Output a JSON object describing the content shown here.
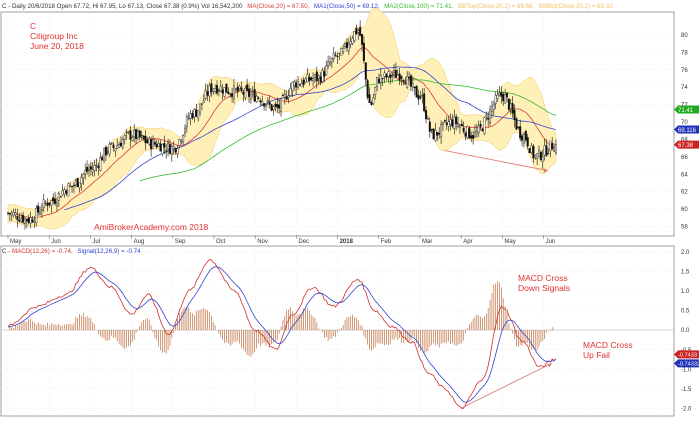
{
  "price_panel": {
    "header": {
      "ticker_prefix": "C - Daily 20/6/2018 Open 67.72, Hi 67.95, Lo 67.13, Close 67.38 (0.9%) Vol 16,542,200",
      "ma_items": [
        {
          "text": "MA(Close,20) = 67.50,",
          "color": "#d93a3a"
        },
        {
          "text": "MA1(Close,50) = 69.12,",
          "color": "#3344cc"
        },
        {
          "text": "MA2(Close,100) = 71.41,",
          "color": "#33bb33"
        },
        {
          "text": "BBTop(Close,20,2) = 69.68,",
          "color": "#f0c060"
        },
        {
          "text": "BBBot(Close,20,2) = 65.32",
          "color": "#f0c060"
        }
      ]
    },
    "annotations": {
      "symbol": "C",
      "name": "Citigroup Inc",
      "date": "June 20, 2018",
      "watermark": "AmiBrokerAcademy.com  2018"
    },
    "y_ticks": [
      "80",
      "78",
      "76",
      "74",
      "72",
      "70",
      "68",
      "66",
      "64",
      "62",
      "60",
      "58"
    ],
    "x_ticks": [
      "May",
      "Jun",
      "Jul",
      "Aug",
      "Sep",
      "Oct",
      "Nov",
      "Dec",
      "2018",
      "Feb",
      "Mar",
      "Apr",
      "May",
      "Jun"
    ],
    "badges": [
      {
        "text": "71.41",
        "color": "#22aa22"
      },
      {
        "text": "69.116",
        "color": "#2233bb"
      },
      {
        "text": "67.38",
        "color": "#cc2222"
      }
    ]
  },
  "macd_panel": {
    "header": {
      "prefix": "C - ",
      "items": [
        {
          "text": "MACD(12,26) = -0.74,",
          "color": "#cc3333"
        },
        {
          "text": "Signal(12,26,9) = -0.74",
          "color": "#3344cc"
        }
      ]
    },
    "y_ticks": [
      "2.0",
      "1.5",
      "1.0",
      "0.5",
      "0.0",
      "-0.5",
      "-1.0",
      "-1.5",
      "-2.0"
    ],
    "annotations": {
      "down": [
        "MACD Cross",
        "Down Signals"
      ],
      "up": [
        "MACD Cross",
        "Up Fail"
      ]
    },
    "badges": [
      {
        "text": "-0.7433",
        "color": "#cc2222"
      },
      {
        "text": "-0.74332",
        "color": "#2233bb"
      }
    ]
  },
  "chart_data": [
    {
      "type": "candlestick",
      "ylim": [
        57,
        82.5
      ],
      "x_month_ticks": [
        "May",
        "Jun",
        "Jul",
        "Aug",
        "Sep",
        "Oct",
        "Nov",
        "Dec",
        "2018",
        "Feb",
        "Mar",
        "Apr",
        "May",
        "Jun"
      ],
      "close_anchors": [
        {
          "month": 0,
          "close": 59.5
        },
        {
          "month": 0.5,
          "close": 58.8
        },
        {
          "month": 1,
          "close": 60.8
        },
        {
          "month": 1.5,
          "close": 62.5
        },
        {
          "month": 2,
          "close": 64.5
        },
        {
          "month": 2.5,
          "close": 67.0
        },
        {
          "month": 3,
          "close": 68.5
        },
        {
          "month": 3.5,
          "close": 67.5
        },
        {
          "month": 4,
          "close": 67.0
        },
        {
          "month": 4.5,
          "close": 71.0
        },
        {
          "month": 5,
          "close": 74.0
        },
        {
          "month": 5.5,
          "close": 73.5
        },
        {
          "month": 6,
          "close": 73.0
        },
        {
          "month": 6.5,
          "close": 71.5
        },
        {
          "month": 7,
          "close": 74.5
        },
        {
          "month": 7.5,
          "close": 75.0
        },
        {
          "month": 8,
          "close": 77.5
        },
        {
          "month": 8.5,
          "close": 80.5
        },
        {
          "month": 8.8,
          "close": 72.0
        },
        {
          "month": 9,
          "close": 75.0
        },
        {
          "month": 9.5,
          "close": 75.5
        },
        {
          "month": 10,
          "close": 73.0
        },
        {
          "month": 10.3,
          "close": 68.5
        },
        {
          "month": 10.8,
          "close": 70.0
        },
        {
          "month": 11.3,
          "close": 68.5
        },
        {
          "month": 12,
          "close": 73.0
        },
        {
          "month": 12.5,
          "close": 68.5
        },
        {
          "month": 12.8,
          "close": 66.0
        },
        {
          "month": 13.3,
          "close": 67.4
        }
      ],
      "moving_averages": [
        {
          "name": "MA(Close,20)",
          "color": "#d93a3a",
          "last": 67.5
        },
        {
          "name": "MA1(Close,50)",
          "color": "#3344cc",
          "last": 69.12
        },
        {
          "name": "MA2(Close,100)",
          "color": "#33bb33",
          "last": 71.41
        }
      ],
      "bollinger": {
        "top_last": 69.68,
        "bot_last": 65.32,
        "color": "#fff0b8"
      },
      "last_close": 67.38,
      "trendline": {
        "from": {
          "month": 10.6,
          "value": 66.7
        },
        "to": {
          "month": 13.1,
          "value": 64.4
        }
      }
    },
    {
      "type": "line",
      "ylim": [
        -2.15,
        2.1
      ],
      "macd_anchors": [
        {
          "month": 0,
          "value": 0.1
        },
        {
          "month": 0.7,
          "value": 0.6
        },
        {
          "month": 1.4,
          "value": 0.9
        },
        {
          "month": 2.0,
          "value": 1.6
        },
        {
          "month": 2.5,
          "value": 1.1
        },
        {
          "month": 3.0,
          "value": 0.4
        },
        {
          "month": 3.4,
          "value": 0.9
        },
        {
          "month": 3.9,
          "value": -0.1
        },
        {
          "month": 4.4,
          "value": 1.0
        },
        {
          "month": 4.9,
          "value": 1.8
        },
        {
          "month": 5.5,
          "value": 1.0
        },
        {
          "month": 6.0,
          "value": 0.0
        },
        {
          "month": 6.5,
          "value": -0.5
        },
        {
          "month": 6.9,
          "value": 0.4
        },
        {
          "month": 7.4,
          "value": 1.1
        },
        {
          "month": 7.9,
          "value": 0.6
        },
        {
          "month": 8.5,
          "value": 1.3
        },
        {
          "month": 8.9,
          "value": 0.5
        },
        {
          "month": 9.3,
          "value": 0.1
        },
        {
          "month": 9.8,
          "value": -0.3
        },
        {
          "month": 10.2,
          "value": -1.1
        },
        {
          "month": 10.6,
          "value": -1.5
        },
        {
          "month": 11.0,
          "value": -2.0
        },
        {
          "month": 11.5,
          "value": -1.3
        },
        {
          "month": 12.0,
          "value": 0.6
        },
        {
          "month": 12.5,
          "value": -0.3
        },
        {
          "month": 12.9,
          "value": -0.95
        },
        {
          "month": 13.3,
          "value": -0.74
        }
      ],
      "signal_last": -0.74,
      "trendline": {
        "from": {
          "month": 11.0,
          "value": -2.0
        },
        "to": {
          "month": 13.2,
          "value": -0.85
        }
      }
    }
  ]
}
